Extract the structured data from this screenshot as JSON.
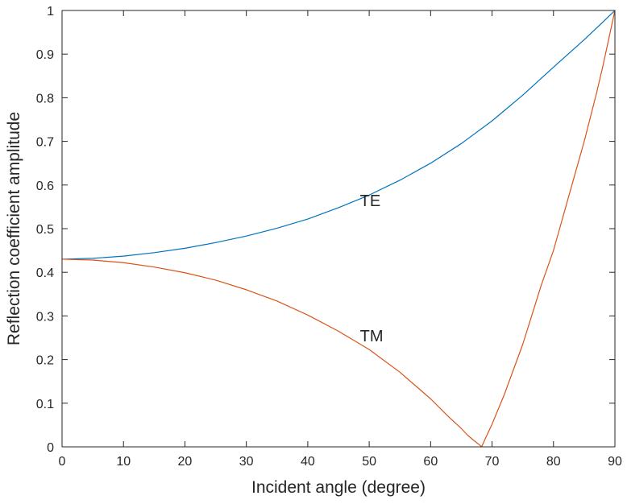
{
  "chart_data": {
    "type": "line",
    "title": "",
    "xlabel": "Incident angle (degree)",
    "ylabel": "Reflection coefficient amplitude",
    "xlim": [
      0,
      90
    ],
    "ylim": [
      0,
      1
    ],
    "xticks": [
      "0",
      "10",
      "20",
      "30",
      "40",
      "50",
      "60",
      "70",
      "80",
      "90"
    ],
    "yticks": [
      "0",
      "0.1",
      "0.2",
      "0.3",
      "0.4",
      "0.5",
      "0.6",
      "0.7",
      "0.8",
      "0.9",
      "1"
    ],
    "grid": false,
    "legend": "none",
    "series": [
      {
        "name": "TE",
        "color": "#0072BD",
        "x": [
          0,
          5,
          10,
          15,
          20,
          25,
          30,
          35,
          40,
          45,
          50,
          55,
          60,
          65,
          70,
          75,
          80,
          85,
          88,
          90
        ],
        "y": [
          0.43,
          0.432,
          0.437,
          0.445,
          0.455,
          0.468,
          0.483,
          0.501,
          0.522,
          0.548,
          0.577,
          0.611,
          0.65,
          0.695,
          0.747,
          0.806,
          0.87,
          0.933,
          0.973,
          1.0
        ]
      },
      {
        "name": "TM",
        "color": "#D95319",
        "x": [
          0,
          5,
          10,
          15,
          20,
          25,
          30,
          35,
          40,
          45,
          50,
          55,
          60,
          63,
          65,
          66,
          67,
          68,
          68.3,
          69,
          70,
          72,
          75,
          78,
          80,
          83,
          85,
          87,
          88,
          89,
          90
        ],
        "y": [
          0.43,
          0.428,
          0.422,
          0.412,
          0.399,
          0.382,
          0.36,
          0.334,
          0.302,
          0.265,
          0.223,
          0.171,
          0.11,
          0.068,
          0.042,
          0.027,
          0.015,
          0.004,
          0.0,
          0.022,
          0.052,
          0.12,
          0.235,
          0.37,
          0.45,
          0.6,
          0.7,
          0.81,
          0.87,
          0.935,
          1.0
        ]
      }
    ],
    "annotations": [
      {
        "text": "TE",
        "x": 48.5,
        "y": 0.565
      },
      {
        "text": "TM",
        "x": 48.5,
        "y": 0.255
      }
    ]
  }
}
